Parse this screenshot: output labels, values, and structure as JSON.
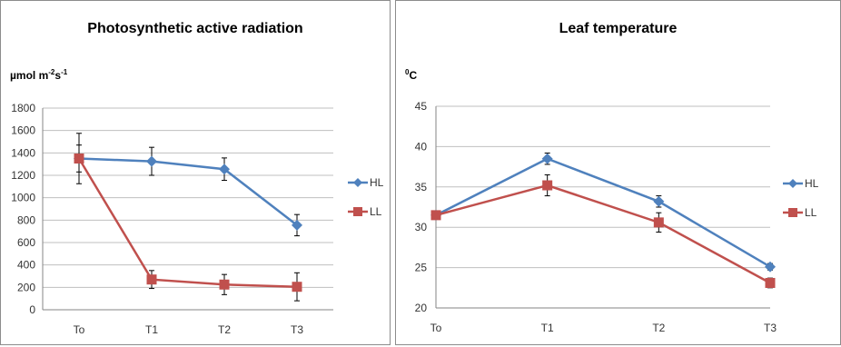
{
  "chart_data": [
    {
      "type": "line",
      "title": "Photosynthetic active radiation",
      "unit_label": "µmol m",
      "unit_sup1": "-2",
      "unit_mid": "s",
      "unit_sup2": "-1",
      "categories": [
        "To",
        "T1",
        "T2",
        "T3"
      ],
      "ylim": [
        0,
        1800
      ],
      "yticks": [
        0,
        200,
        400,
        600,
        800,
        1000,
        1200,
        1400,
        1600,
        1800
      ],
      "grid": true,
      "legend_position": "right",
      "series": [
        {
          "name": "HL",
          "color": "#4f81bd",
          "marker": "diamond",
          "values": [
            1350,
            1325,
            1255,
            755
          ],
          "errors": [
            120,
            125,
            100,
            95
          ]
        },
        {
          "name": "LL",
          "color": "#c0504d",
          "marker": "square",
          "values": [
            1350,
            270,
            225,
            205
          ],
          "errors": [
            225,
            80,
            90,
            125
          ]
        }
      ]
    },
    {
      "type": "line",
      "title": "Leaf temperature",
      "unit_label": "",
      "unit_sup1": "0",
      "unit_mid": "C",
      "unit_sup2": "",
      "categories": [
        "To",
        "T1",
        "T2",
        "T3"
      ],
      "ylim": [
        20,
        45
      ],
      "yticks": [
        20,
        25,
        30,
        35,
        40,
        45
      ],
      "grid": true,
      "legend_position": "right",
      "series": [
        {
          "name": "HL",
          "color": "#4f81bd",
          "marker": "diamond",
          "values": [
            31.5,
            38.5,
            33.2,
            25.1
          ],
          "errors": [
            0.4,
            0.7,
            0.7,
            0.4
          ]
        },
        {
          "name": "LL",
          "color": "#c0504d",
          "marker": "square",
          "values": [
            31.5,
            35.2,
            30.6,
            23.1
          ],
          "errors": [
            0.5,
            1.3,
            1.2,
            0.6
          ]
        }
      ]
    }
  ]
}
